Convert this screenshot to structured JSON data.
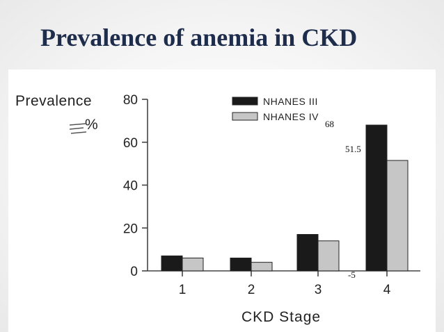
{
  "slide": {
    "title": "Prevalence of anemia in CKD"
  },
  "chart_data": {
    "type": "bar",
    "ylabel": "Prevalence",
    "ylabel_unit": "%",
    "xlabel": "CKD Stage",
    "categories": [
      "1",
      "2",
      "3",
      "4"
    ],
    "series": [
      {
        "name": "NHANES III",
        "color": "#1a1a1a",
        "values": [
          7,
          6,
          17,
          68
        ]
      },
      {
        "name": "NHANES IV",
        "color": "#c6c6c6",
        "values": [
          6,
          4,
          14,
          51.5
        ]
      }
    ],
    "ylim": [
      0,
      80
    ],
    "yticks": [
      "0",
      "20",
      "40",
      "60",
      "80"
    ],
    "legend_position": "top-center",
    "grid": false,
    "overlay_labels": [
      "68",
      "51.5",
      "-5"
    ]
  }
}
